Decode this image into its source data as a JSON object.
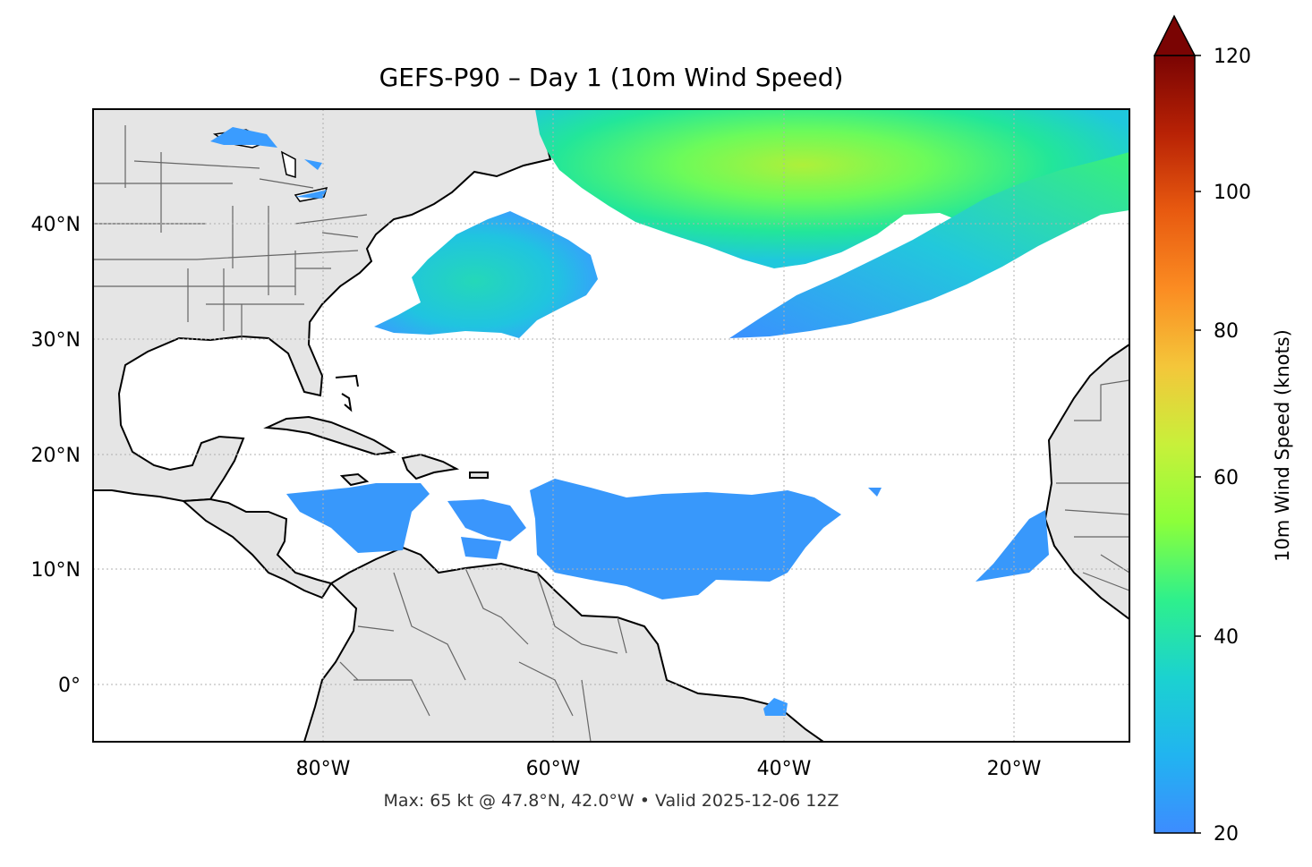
{
  "title": "GEFS-P90 – Day 1 (10m Wind Speed)",
  "footer": "Max: 65 kt @ 47.8°N, 42.0°W • Valid 2025-12-06 12Z",
  "map": {
    "lon_range": [
      -100,
      -10
    ],
    "lat_range": [
      -5,
      50
    ],
    "lat_ticks": [
      "40°N",
      "30°N",
      "20°N",
      "10°N",
      "0°"
    ],
    "lon_ticks": [
      "80°W",
      "60°W",
      "40°W",
      "20°W"
    ],
    "land_color": "#e5e5e5",
    "coast_color": "#000000",
    "border_color": "#666666",
    "gridlines": true
  },
  "colorbar": {
    "label": "10m Wind Speed (knots)",
    "range": [
      20,
      120
    ],
    "ticks": [
      "20",
      "40",
      "60",
      "80",
      "100",
      "120"
    ],
    "extend": "max",
    "colormap": "turbo"
  },
  "wind_features": [
    {
      "name": "north-atlantic-storm",
      "max_kt": 65,
      "peak_lat": 47.8,
      "peak_lon": -42.0
    },
    {
      "name": "subtropical-band"
    },
    {
      "name": "western-atlantic-gale"
    },
    {
      "name": "tropical-trade-winds"
    },
    {
      "name": "west-africa-offshore"
    }
  ]
}
